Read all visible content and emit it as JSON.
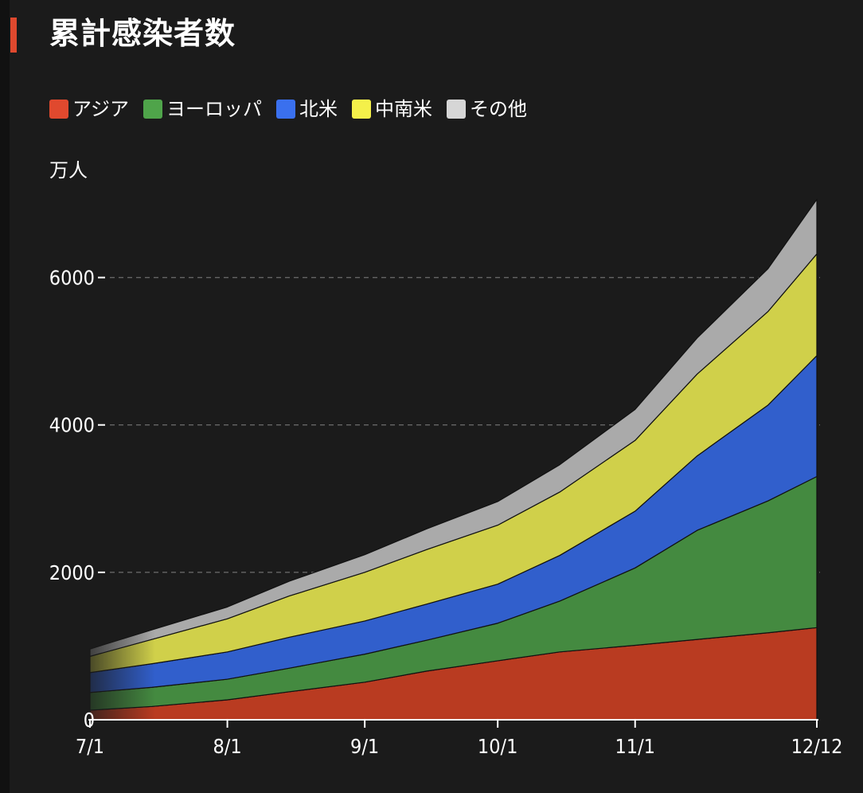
{
  "title": "累計感染者数",
  "colors": {
    "accent": "#e0492e",
    "background": "#1b1b1b",
    "grid": "#666666"
  },
  "legend": {
    "items": [
      {
        "label": "アジア",
        "color": "#e0492e"
      },
      {
        "label": "ヨーロッパ",
        "color": "#4fa44a"
      },
      {
        "label": "北米",
        "color": "#3a70ee"
      },
      {
        "label": "中南米",
        "color": "#f4f04a"
      },
      {
        "label": "その他",
        "color": "#d6d6d6"
      }
    ]
  },
  "chart_data": {
    "type": "area",
    "stacked": true,
    "ylabel": "万人",
    "ylim": [
      0,
      7000
    ],
    "yticks": [
      0,
      2000,
      4000,
      6000
    ],
    "grid": true,
    "legend_position": "top-left",
    "x_tick_labels": [
      "7/1",
      "8/1",
      "9/1",
      "10/1",
      "11/1",
      "12/12"
    ],
    "x": [
      "7/1",
      "7/15",
      "8/1",
      "8/15",
      "9/1",
      "9/15",
      "10/1",
      "10/15",
      "11/1",
      "11/15",
      "12/1",
      "12/12"
    ],
    "series": [
      {
        "name": "アジア",
        "color": "#b93b21",
        "values": [
          130,
          180,
          270,
          380,
          510,
          660,
          800,
          920,
          1010,
          1090,
          1180,
          1250
        ]
      },
      {
        "name": "ヨーロッパ",
        "color": "#448a40",
        "values": [
          240,
          260,
          280,
          320,
          380,
          420,
          510,
          690,
          1050,
          1480,
          1790,
          2050
        ]
      },
      {
        "name": "北米",
        "color": "#315fcc",
        "values": [
          270,
          320,
          370,
          420,
          450,
          490,
          530,
          620,
          770,
          1010,
          1300,
          1640
        ]
      },
      {
        "name": "中南米",
        "color": "#d0d04a",
        "values": [
          220,
          330,
          450,
          560,
          660,
          740,
          800,
          860,
          960,
          1110,
          1270,
          1380
        ]
      },
      {
        "name": "その他",
        "color": "#aaaaaa",
        "values": [
          100,
          130,
          160,
          200,
          240,
          280,
          320,
          370,
          420,
          490,
          580,
          740
        ]
      }
    ]
  }
}
